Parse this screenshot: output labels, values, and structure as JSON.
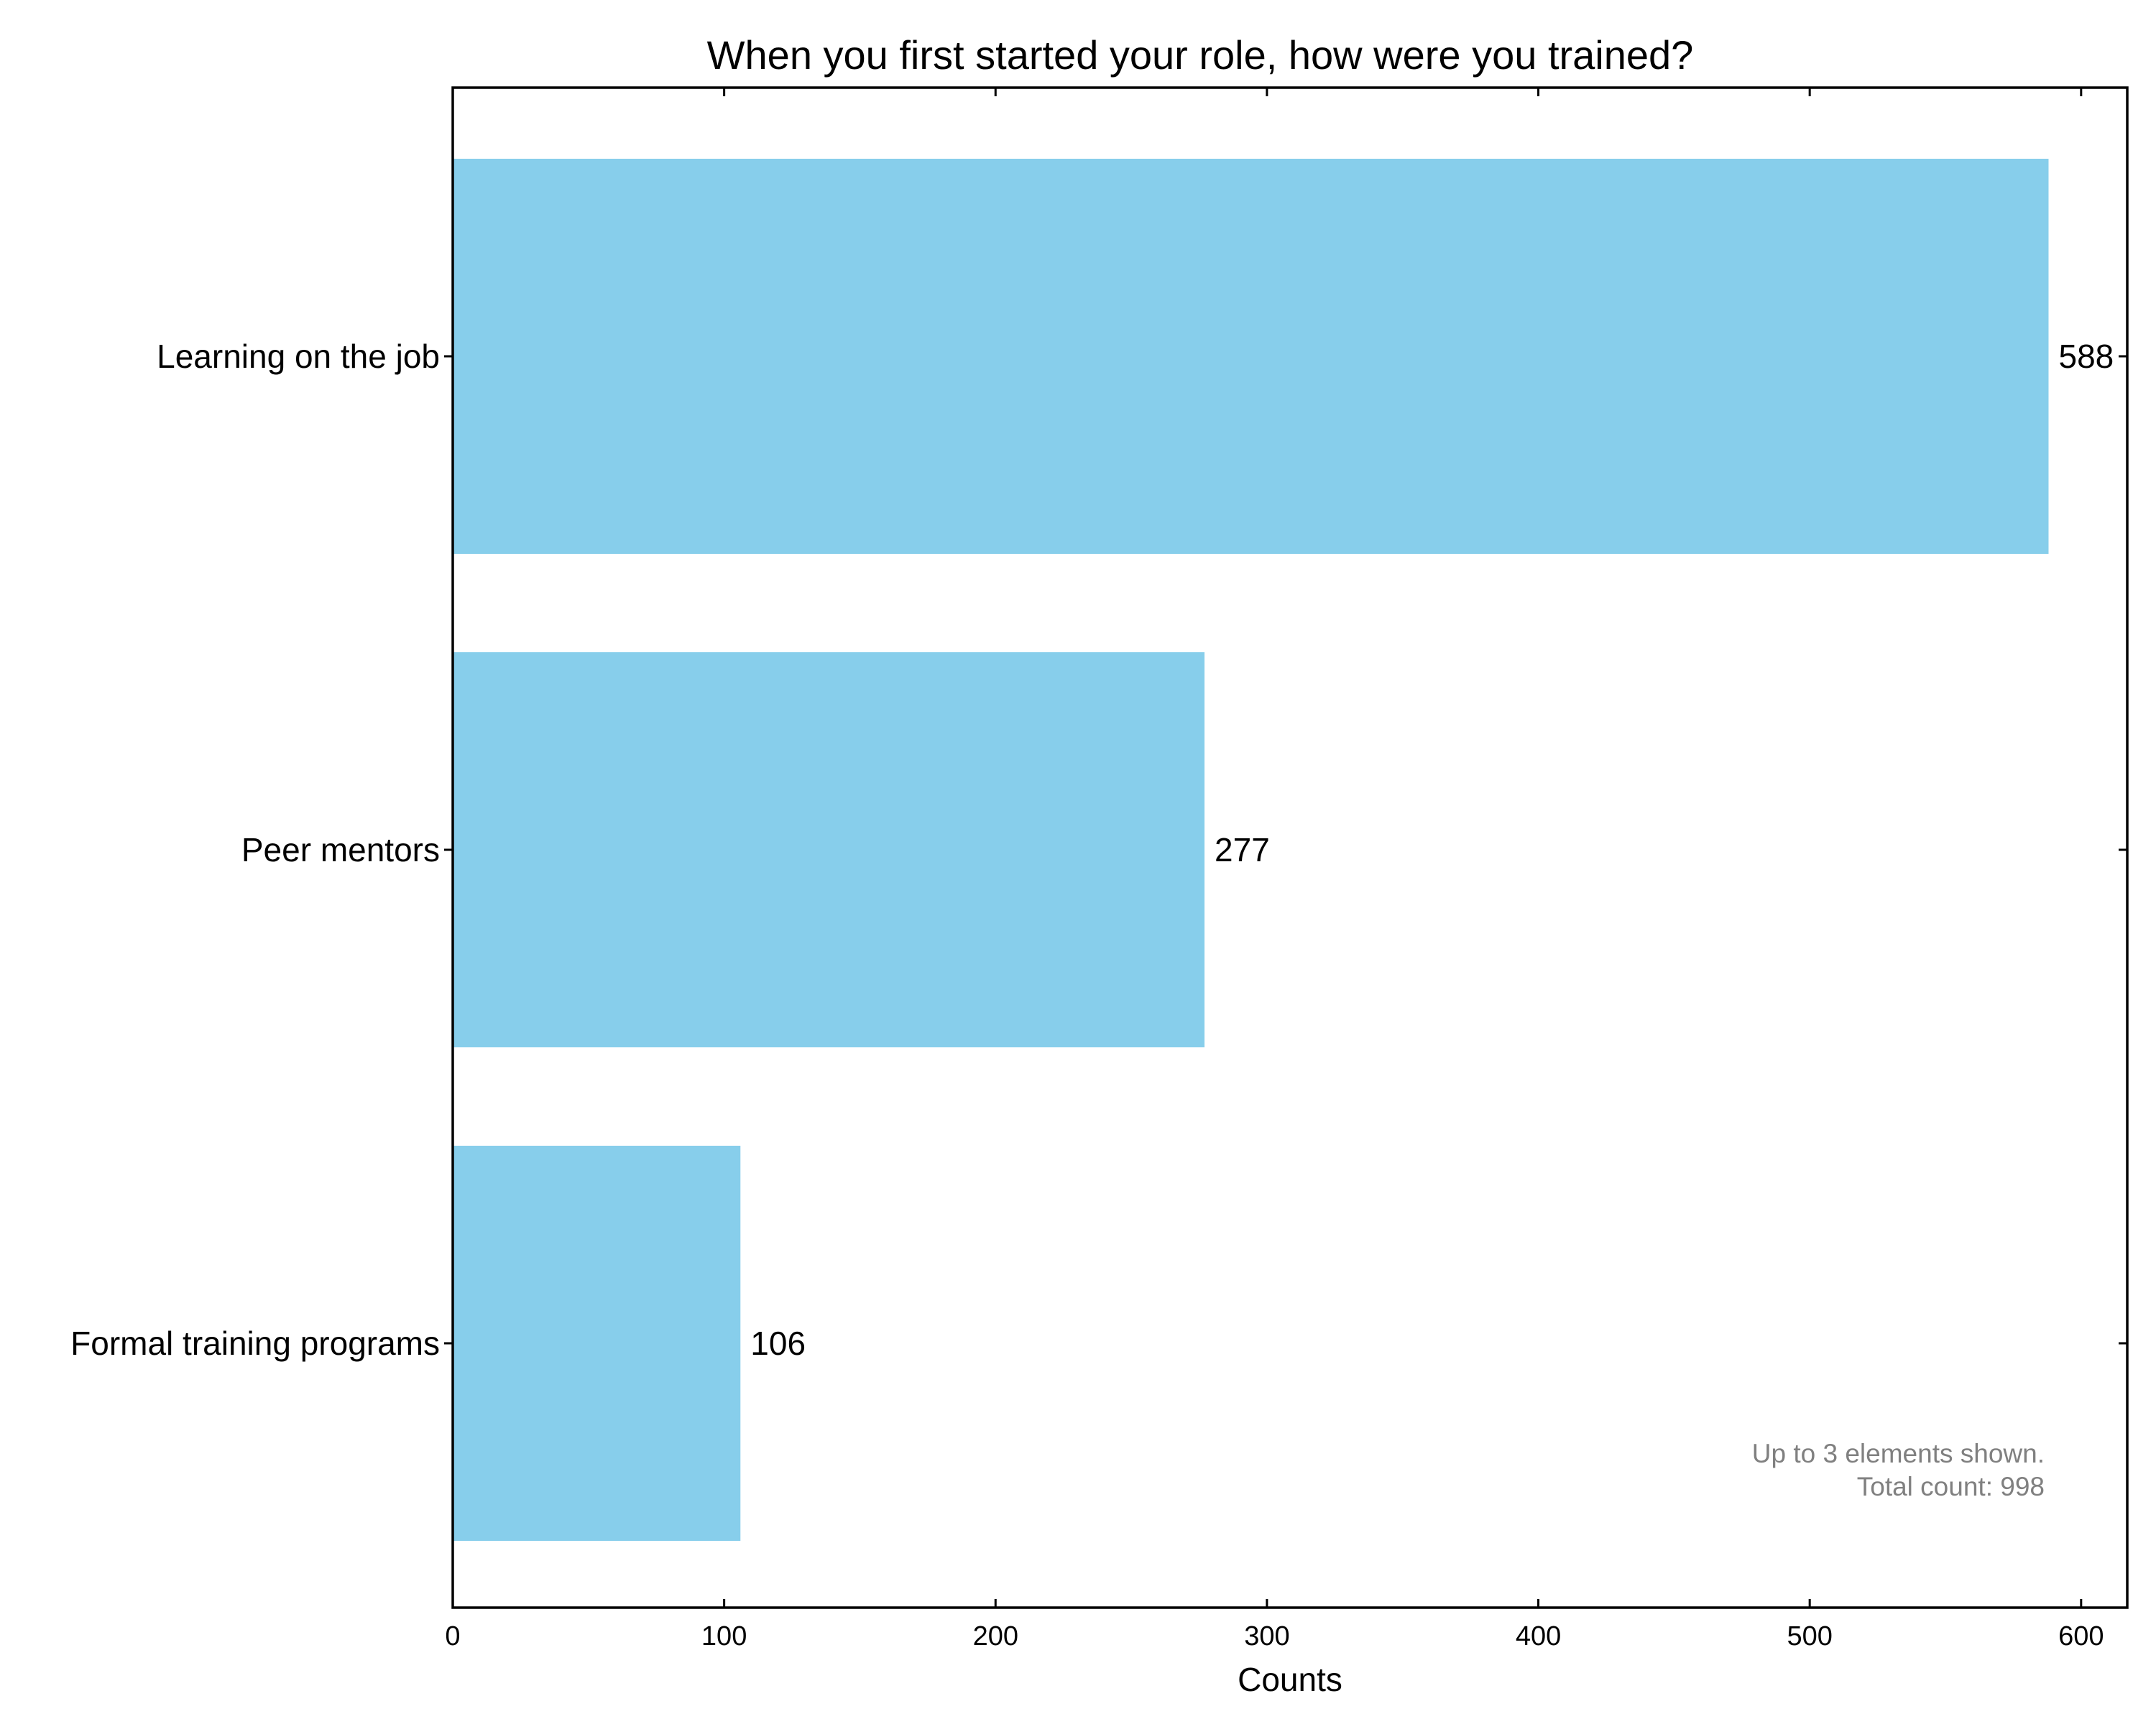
{
  "chart_data": {
    "type": "bar",
    "orientation": "horizontal",
    "title": "When you first started your role, how were you trained?",
    "categories": [
      "Learning on the job",
      "Peer mentors",
      "Formal training programs"
    ],
    "values": [
      588,
      277,
      106
    ],
    "xlabel": "Counts",
    "ylabel": "",
    "xlim": [
      0,
      617
    ],
    "x_ticks": [
      0,
      100,
      200,
      300,
      400,
      500,
      600
    ],
    "bar_color": "#87CEEB",
    "grid": false,
    "note_lines": [
      "Up to 3 elements shown.",
      "Total count: 998"
    ]
  }
}
